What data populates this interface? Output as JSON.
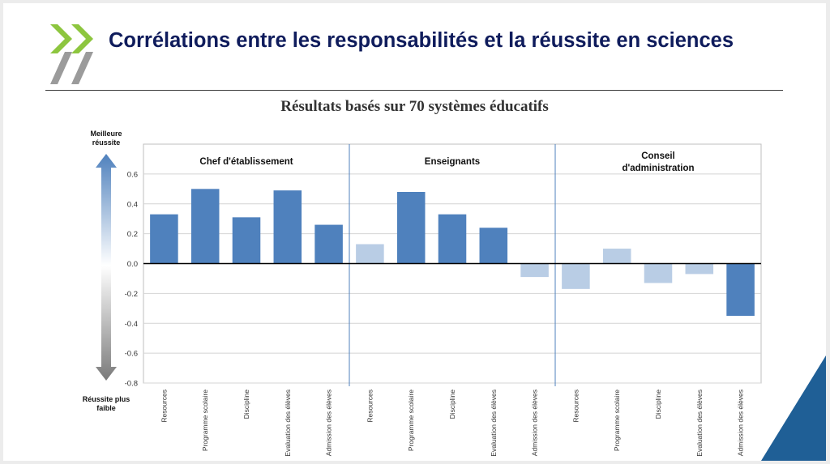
{
  "slide": {
    "title": "Corrélations entre les responsabilités et la réussite en sciences"
  },
  "colors": {
    "title": "#0f1c5c",
    "logo_green": "#8dc63f",
    "logo_gray": "#9b9b9b",
    "bar_significant": "#4f81bd",
    "bar_not_significant": "#b9cde5",
    "corner_accent": "#1f5f96"
  },
  "chart_data": {
    "type": "bar",
    "title": "Résultats basés sur 70 systèmes éducatifs",
    "y_axis": {
      "ylim": [
        -0.8,
        0.8
      ],
      "ticks": [
        "-0.8",
        "-0.6",
        "-0.4",
        "-0.2",
        "0.0",
        "0.2",
        "0.4",
        "0.6"
      ],
      "top_label": [
        "Meilleure",
        "réussite"
      ],
      "bottom_label": [
        "Réussite plus",
        "faible"
      ]
    },
    "grid": true,
    "groups": [
      {
        "name": [
          "Chef d'établissement"
        ],
        "categories": [
          "Resources",
          "Programme scolaire",
          "Discipline",
          "Evaluation des élèves",
          "Admission des élèves"
        ],
        "values": [
          0.33,
          0.5,
          0.31,
          0.49,
          0.26
        ],
        "significant": [
          true,
          true,
          true,
          true,
          true
        ]
      },
      {
        "name": [
          "Enseignants"
        ],
        "categories": [
          "Resources",
          "Programme scolaire",
          "Discipline",
          "Evaluation des élèves",
          "Admission des élèves"
        ],
        "values": [
          0.13,
          0.48,
          0.33,
          0.24,
          -0.09
        ],
        "significant": [
          false,
          true,
          true,
          true,
          false
        ]
      },
      {
        "name": [
          "Conseil",
          "d'administration"
        ],
        "categories": [
          "Resources",
          "Programme scolaire",
          "Discipline",
          "Evaluation des élèves",
          "Admission des élèves"
        ],
        "values": [
          -0.17,
          0.1,
          -0.13,
          -0.07,
          -0.35
        ],
        "significant": [
          false,
          false,
          false,
          false,
          true
        ]
      }
    ]
  }
}
